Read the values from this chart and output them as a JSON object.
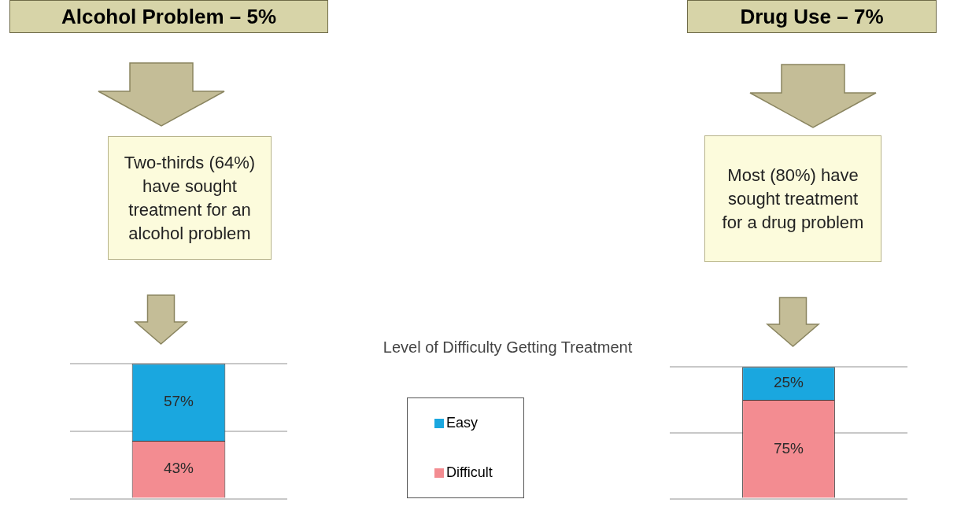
{
  "chart_data": [
    {
      "type": "bar",
      "title": "Alcohol Problem – 5%",
      "annotations": [
        "Two-thirds (64%) have sought treatment for an alcohol problem"
      ],
      "legend_title": "Level of Difficulty Getting Treatment",
      "legend": "right",
      "categories": [
        null
      ],
      "stacked": true,
      "ylim": [
        0,
        100
      ],
      "yticks": [
        {
          "value": 0,
          "label": null
        },
        {
          "value": 50,
          "label": null
        },
        {
          "value": 100,
          "label": null
        }
      ],
      "grid": "y",
      "series": [
        {
          "name": "Difficult",
          "color": "#f38c91",
          "values": [
            43
          ],
          "value_labels": [
            "43%"
          ]
        },
        {
          "name": "Easy",
          "color": "#1aa7df",
          "values": [
            57
          ],
          "value_labels": [
            "57%"
          ]
        }
      ]
    },
    {
      "type": "bar",
      "title": "Drug Use – 7%",
      "annotations": [
        "Most (80%) have sought treatment for a drug problem"
      ],
      "categories": [
        null
      ],
      "stacked": true,
      "ylim": [
        0,
        100
      ],
      "yticks": [
        {
          "value": 0,
          "label": null
        },
        {
          "value": 50,
          "label": null
        },
        {
          "value": 100,
          "label": null
        }
      ],
      "grid": "y",
      "series": [
        {
          "color": "#f38c91",
          "values": [
            75
          ],
          "value_labels": [
            "75%"
          ]
        },
        {
          "color": "#1aa7df",
          "values": [
            25
          ],
          "value_labels": [
            "25%"
          ]
        }
      ]
    }
  ]
}
